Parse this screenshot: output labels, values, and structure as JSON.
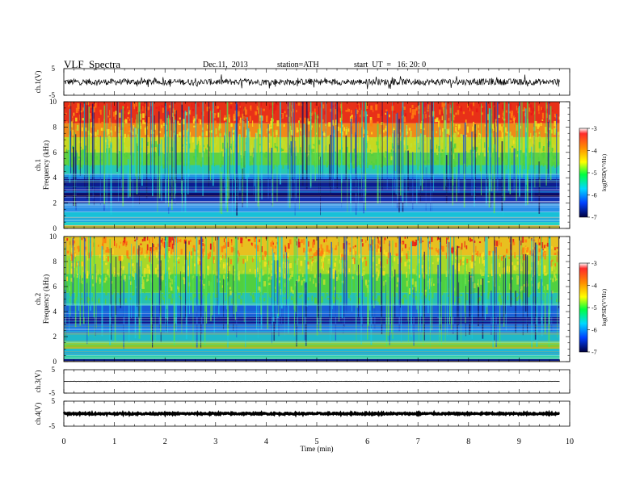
{
  "header": {
    "title": "VLF  Spectra",
    "date": "Dec.11,  2013",
    "station": "station=ATH",
    "start": "start  UT  =   16: 20: 0"
  },
  "chart_data": [
    {
      "type": "line",
      "panel": "ch1-waveform",
      "ylabel": "ch.1(V)",
      "ylim": [
        -5,
        5
      ],
      "yticks": [
        "5",
        "-5"
      ],
      "xlim": [
        0,
        9.8
      ],
      "baseline": 0,
      "amplitude": 1.2
    },
    {
      "type": "heatmap",
      "panel": "ch1-spectrogram",
      "ylabel": "ch.1",
      "ylabel2": "Frequency  (kHz)",
      "ylim": [
        0,
        10
      ],
      "yticks": [
        "0",
        "2",
        "4",
        "6",
        "8",
        "10"
      ],
      "xlim": [
        0,
        9.8
      ],
      "bands": [
        {
          "f0": 0.0,
          "f1": 0.25,
          "color": "#c8a21a"
        },
        {
          "f0": 0.25,
          "f1": 0.5,
          "color": "#20d0c0"
        },
        {
          "f0": 0.5,
          "f1": 0.9,
          "color": "#1aa8e0"
        },
        {
          "f0": 0.9,
          "f1": 1.3,
          "color": "#18c0d8"
        },
        {
          "f0": 1.3,
          "f1": 2.0,
          "color": "#2a90e8"
        },
        {
          "f0": 2.0,
          "f1": 2.5,
          "color": "#1030b0"
        },
        {
          "f0": 2.5,
          "f1": 2.8,
          "color": "#080868"
        },
        {
          "f0": 2.8,
          "f1": 3.2,
          "color": "#1228a8"
        },
        {
          "f0": 3.2,
          "f1": 3.9,
          "color": "#0c1c90"
        },
        {
          "f0": 3.9,
          "f1": 4.3,
          "color": "#1a78e0"
        },
        {
          "f0": 4.3,
          "f1": 5.0,
          "color": "#28c8b0"
        },
        {
          "f0": 5.0,
          "f1": 6.0,
          "color": "#60d040"
        },
        {
          "f0": 6.0,
          "f1": 7.2,
          "color": "#c8d820"
        },
        {
          "f0": 7.2,
          "f1": 8.3,
          "color": "#f08a18"
        },
        {
          "f0": 8.3,
          "f1": 10.0,
          "color": "#e83018"
        }
      ],
      "colorbar": {
        "label": "log(PSD(V²/Hz)",
        "ticks": [
          "-3",
          "-4",
          "-5",
          "-6",
          "-7"
        ],
        "range": [
          -7,
          -3
        ]
      }
    },
    {
      "type": "heatmap",
      "panel": "ch2-spectrogram",
      "ylabel": "ch.2",
      "ylabel2": "Frequency  (kHz)",
      "ylim": [
        0,
        10
      ],
      "yticks": [
        "0",
        "2",
        "4",
        "6",
        "8",
        "10"
      ],
      "xlim": [
        0,
        9.8
      ],
      "bands": [
        {
          "f0": 0.0,
          "f1": 0.2,
          "color": "#0a1a80"
        },
        {
          "f0": 0.2,
          "f1": 0.5,
          "color": "#30c8a0"
        },
        {
          "f0": 0.5,
          "f1": 1.0,
          "color": "#18b0d8"
        },
        {
          "f0": 1.0,
          "f1": 1.6,
          "color": "#88c830"
        },
        {
          "f0": 1.6,
          "f1": 2.3,
          "color": "#20b8c8"
        },
        {
          "f0": 2.3,
          "f1": 3.0,
          "color": "#1a78e0"
        },
        {
          "f0": 3.0,
          "f1": 3.6,
          "color": "#0a1890"
        },
        {
          "f0": 3.6,
          "f1": 4.5,
          "color": "#1a60d8"
        },
        {
          "f0": 4.5,
          "f1": 5.5,
          "color": "#28c0b0"
        },
        {
          "f0": 5.5,
          "f1": 7.0,
          "color": "#50d040"
        },
        {
          "f0": 7.0,
          "f1": 8.5,
          "color": "#a8d828"
        },
        {
          "f0": 8.5,
          "f1": 10.0,
          "color": "#e8c020"
        }
      ],
      "colorbar": {
        "label": "log(PSD(V²/Hz)",
        "ticks": [
          "-3",
          "-4",
          "-5",
          "-6",
          "-7"
        ],
        "range": [
          -7,
          -3
        ]
      }
    },
    {
      "type": "line",
      "panel": "ch3-waveform",
      "ylabel": "ch.3(V)",
      "ylim": [
        -5,
        5
      ],
      "yticks": [
        "5",
        "-5"
      ],
      "xlim": [
        0,
        9.8
      ],
      "baseline": 0,
      "amplitude": 0.08
    },
    {
      "type": "line",
      "panel": "ch4-waveform",
      "ylabel": "ch.4(V)",
      "ylim": [
        -5,
        5
      ],
      "yticks": [
        "5",
        "-5"
      ],
      "xlim": [
        0,
        9.8
      ],
      "baseline": 0,
      "amplitude": 0.3
    }
  ],
  "xaxis": {
    "label": "Time  (min)",
    "ticks": [
      "0",
      "1",
      "2",
      "3",
      "4",
      "5",
      "6",
      "7",
      "8",
      "9",
      "10"
    ],
    "range": [
      0,
      10
    ]
  },
  "colors": {
    "frame": "#000000",
    "trace": "#000000"
  }
}
